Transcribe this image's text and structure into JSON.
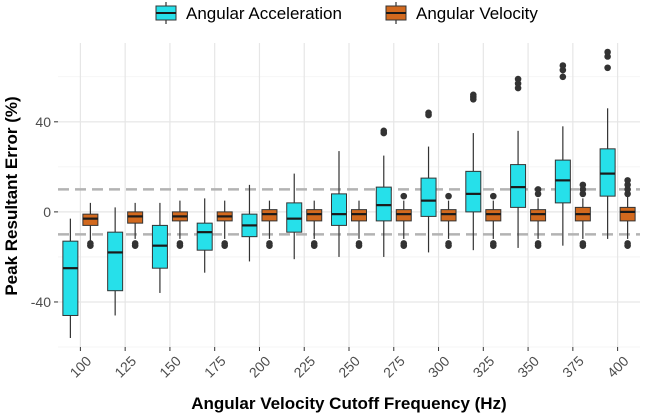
{
  "chart_data": {
    "type": "boxplot",
    "title": "",
    "xlabel": "Angular Velocity Cutoff Frequency (Hz)",
    "ylabel": "Peak Resultant Error (%)",
    "ylim": [
      -60,
      75
    ],
    "yticks": [
      -40,
      0,
      40
    ],
    "ytick_labels": [
      "-40",
      "0",
      "40"
    ],
    "reference_lines": [
      10,
      -10
    ],
    "categories": [
      "100",
      "125",
      "150",
      "175",
      "200",
      "225",
      "250",
      "275",
      "300",
      "325",
      "350",
      "375",
      "400"
    ],
    "legend": [
      {
        "name": "Angular Acceleration",
        "color": "#26e0ea"
      },
      {
        "name": "Angular Velocity",
        "color": "#d2691e"
      }
    ],
    "series": [
      {
        "name": "Angular Acceleration",
        "color": "#26e0ea",
        "boxes": [
          {
            "min": -56,
            "q1": -46,
            "median": -25,
            "q3": -13,
            "max": -3,
            "outliers": []
          },
          {
            "min": -46,
            "q1": -35,
            "median": -18,
            "q3": -9,
            "max": 2,
            "outliers": []
          },
          {
            "min": -36,
            "q1": -25,
            "median": -15,
            "q3": -6,
            "max": 4,
            "outliers": []
          },
          {
            "min": -27,
            "q1": -17,
            "median": -9,
            "q3": -5,
            "max": 6,
            "outliers": []
          },
          {
            "min": -22,
            "q1": -11,
            "median": -6,
            "q3": -1,
            "max": 12,
            "outliers": []
          },
          {
            "min": -21,
            "q1": -9,
            "median": -3,
            "q3": 4,
            "max": 17,
            "outliers": []
          },
          {
            "min": -20,
            "q1": -6,
            "median": -1,
            "q3": 8,
            "max": 27,
            "outliers": []
          },
          {
            "min": -20,
            "q1": -4,
            "median": 3,
            "q3": 11,
            "max": 25,
            "outliers": [
              35,
              36
            ]
          },
          {
            "min": -18,
            "q1": -2,
            "median": 5,
            "q3": 15,
            "max": 29,
            "outliers": [
              43,
              44
            ]
          },
          {
            "min": -17,
            "q1": 0,
            "median": 8,
            "q3": 18,
            "max": 35,
            "outliers": [
              50,
              51,
              52
            ]
          },
          {
            "min": -16,
            "q1": 2,
            "median": 11,
            "q3": 21,
            "max": 36,
            "outliers": [
              55,
              57,
              59
            ]
          },
          {
            "min": -15,
            "q1": 4,
            "median": 14,
            "q3": 23,
            "max": 38,
            "outliers": [
              60,
              63,
              65
            ]
          },
          {
            "min": -12,
            "q1": 7,
            "median": 17,
            "q3": 28,
            "max": 46,
            "outliers": [
              64,
              69,
              71
            ]
          }
        ]
      },
      {
        "name": "Angular Velocity",
        "color": "#d2691e",
        "boxes": [
          {
            "min": -13,
            "q1": -6,
            "median": -3,
            "q3": -1,
            "max": 4,
            "outliers": [
              -15,
              -14
            ]
          },
          {
            "min": -12,
            "q1": -5,
            "median": -2,
            "q3": 0,
            "max": 4,
            "outliers": [
              -15,
              -14
            ]
          },
          {
            "min": -12,
            "q1": -4,
            "median": -2,
            "q3": 0,
            "max": 5,
            "outliers": [
              -15,
              -14
            ]
          },
          {
            "min": -12,
            "q1": -4,
            "median": -2,
            "q3": 0,
            "max": 5,
            "outliers": [
              -15,
              -14
            ]
          },
          {
            "min": -12,
            "q1": -4,
            "median": -1,
            "q3": 1,
            "max": 5,
            "outliers": [
              -15,
              -14
            ]
          },
          {
            "min": -12,
            "q1": -4,
            "median": -1,
            "q3": 1,
            "max": 5,
            "outliers": [
              -15,
              -14
            ]
          },
          {
            "min": -12,
            "q1": -4,
            "median": -1,
            "q3": 1,
            "max": 5,
            "outliers": [
              -15,
              -14
            ]
          },
          {
            "min": -12,
            "q1": -4,
            "median": -1,
            "q3": 1,
            "max": 5,
            "outliers": [
              -15,
              -14,
              7
            ]
          },
          {
            "min": -12,
            "q1": -4,
            "median": -1,
            "q3": 1,
            "max": 5,
            "outliers": [
              -15,
              -14,
              7
            ]
          },
          {
            "min": -12,
            "q1": -4,
            "median": -1,
            "q3": 1,
            "max": 5,
            "outliers": [
              -15,
              -14,
              7
            ]
          },
          {
            "min": -12,
            "q1": -4,
            "median": -1,
            "q3": 1,
            "max": 6,
            "outliers": [
              -15,
              -14,
              8,
              10
            ]
          },
          {
            "min": -12,
            "q1": -4,
            "median": -1,
            "q3": 2,
            "max": 6,
            "outliers": [
              -15,
              -14,
              8,
              10,
              12
            ]
          },
          {
            "min": -12,
            "q1": -4,
            "median": 0,
            "q3": 2,
            "max": 7,
            "outliers": [
              -15,
              -14,
              8,
              10,
              12,
              14
            ]
          }
        ]
      }
    ]
  }
}
